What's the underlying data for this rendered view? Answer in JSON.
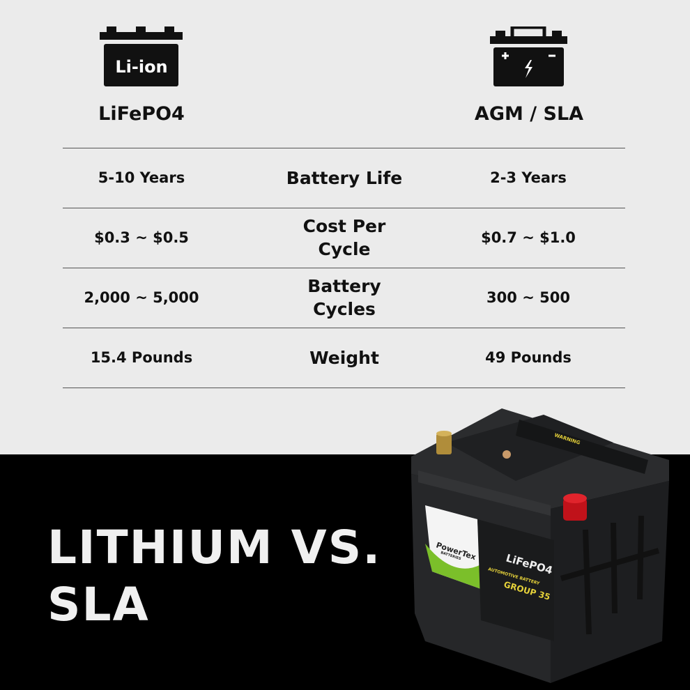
{
  "left": {
    "icon": "li-ion-battery-icon",
    "icon_text": "Li-ion",
    "header": "LiFePO4"
  },
  "right": {
    "icon": "lead-acid-battery-icon",
    "header": "AGM / SLA"
  },
  "rows": [
    {
      "left": "5-10 Years",
      "label": "Battery Life",
      "right": "2-3 Years"
    },
    {
      "left": "$0.3 ~ $0.5",
      "label": "Cost Per Cycle",
      "right": "$0.7 ~ $1.0"
    },
    {
      "left": "2,000 ~ 5,000",
      "label": "Battery Cycles",
      "right": "300 ~ 500"
    },
    {
      "left": "15.4 Pounds",
      "label": "Weight",
      "right": "49 Pounds"
    }
  ],
  "title": {
    "line1": "LITHIUM VS.",
    "line2": "SLA"
  },
  "product": {
    "brand": "PowerTex",
    "brand_sub": "BATTERIES",
    "chem": "LiFePO4",
    "type": "AUTOMOTIVE BATTERY",
    "group": "GROUP 35",
    "warning": "WARNING"
  },
  "colors": {
    "background": "#ebebeb",
    "dark": "#000000",
    "accent_green": "#7bbf2a",
    "label_yellow": "#e6d23a",
    "terminal_red": "#d0141c"
  }
}
